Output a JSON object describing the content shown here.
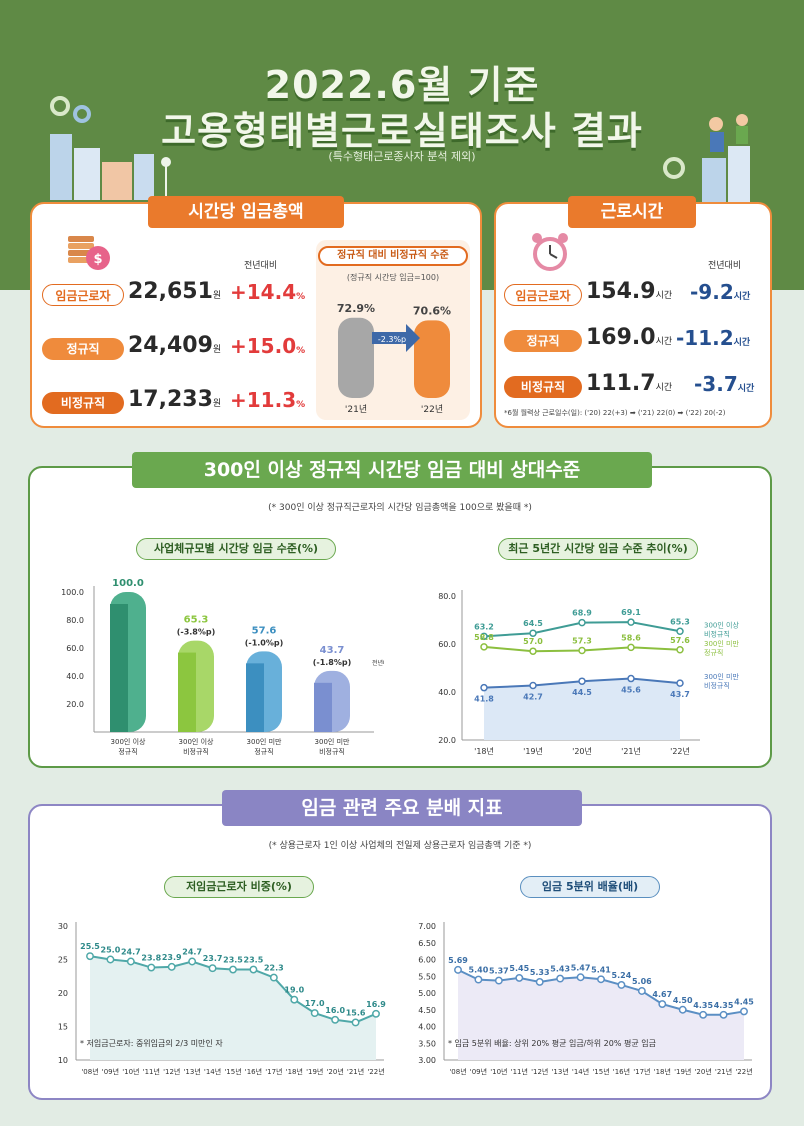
{
  "header": {
    "title_line1": "2022.6월 기준",
    "title_line2": "고용형태별근로실태조사 결과",
    "subtitle": "(특수형태근로종사자 분석 제외)"
  },
  "wage_panel": {
    "ribbon": "시간당 임금총액",
    "yoy_label": "전년대비",
    "rows": [
      {
        "label": "임금근로자",
        "value": "22,651",
        "unit": "원",
        "change": "+14.4",
        "change_unit": "%"
      },
      {
        "label": "정규직",
        "value": "24,409",
        "unit": "원",
        "change": "+15.0",
        "change_unit": "%"
      },
      {
        "label": "비정규직",
        "value": "17,233",
        "unit": "원",
        "change": "+11.3",
        "change_unit": "%"
      }
    ],
    "comparison": {
      "title": "정규직 대비 비정규직 수준",
      "note": "(정규직 시간당 임금=100)",
      "diff": "-2.3%p",
      "unit": "%"
    }
  },
  "hours_panel": {
    "ribbon": "근로시간",
    "yoy_label": "전년대비",
    "rows": [
      {
        "label": "임금근로자",
        "value": "154.9",
        "unit": "시간",
        "change": "-9.2",
        "change_unit": "시간"
      },
      {
        "label": "정규직",
        "value": "169.0",
        "unit": "시간",
        "change": "-11.2",
        "change_unit": "시간"
      },
      {
        "label": "비정규직",
        "value": "111.7",
        "unit": "시간",
        "change": "-3.7",
        "change_unit": "시간"
      }
    ],
    "footnote": "*6월 월력상 근로일수(일): ('20) 22(+3) ➡ ('21) 22(0) ➡ ('22) 20(-2)"
  },
  "section2": {
    "ribbon": "300인 이상 정규직 시간당 임금 대비 상대수준",
    "note": "(* 300인 이상 정규직근로자의 시간당 임금총액을 100으로 봤을때 *)",
    "bar_title": "사업체규모별 시간당 임금 수준(%)",
    "line_title": "최근 5년간 시간당 임금 수준 추이(%)",
    "bar_yoy_label": "전년대비"
  },
  "section3": {
    "ribbon": "임금 관련 주요 분배 지표",
    "note": "(* 상용근로자 1인 이상 사업체의 전일제 상용근로자 임금총액 기준 *)",
    "low_title": "저임금근로자 비중(%)",
    "ratio_title": "임금 5분위 배율(배)",
    "low_note": "* 저임금근로자: 중위임금의 2/3 미만인 자",
    "ratio_note": "* 임금 5분위 배율: 상위 20% 평균 임금/하위 20% 평균 임금"
  },
  "colors": {
    "orange": "#ea7a2c",
    "green": "#6aa84f",
    "purple": "#8a85c4",
    "red": "#e23b3b",
    "navy": "#254f8f"
  },
  "chart_data": [
    {
      "type": "bar",
      "id": "ratio",
      "categories": [
        "'21년",
        "'22년"
      ],
      "values": [
        72.9,
        70.6
      ],
      "value_labels": [
        "72.9",
        "70.6"
      ]
    },
    {
      "type": "bar",
      "id": "size",
      "categories": [
        [
          "300인 이상",
          "정규직"
        ],
        [
          "300인 이상",
          "비정규직"
        ],
        [
          "300인 미만",
          "정규직"
        ],
        [
          "300인 미만",
          "비정규직"
        ]
      ],
      "values": [
        100.0,
        65.3,
        57.6,
        43.7
      ],
      "value_labels": [
        "100.0",
        "65.3",
        "57.6",
        "43.7"
      ],
      "changes": [
        "",
        "(-3.8%p)",
        "(-1.0%p)",
        "(-1.8%p)"
      ],
      "yticks": [
        "100.0",
        "80.0",
        "60.0",
        "40.0",
        "20.0"
      ],
      "ylim": [
        0,
        100
      ]
    },
    {
      "type": "line",
      "id": "trend",
      "x": [
        "'18년",
        "'19년",
        "'20년",
        "'21년",
        "'22년"
      ],
      "yticks": [
        "80.0",
        "60.0",
        "40.0",
        "20.0"
      ],
      "ylim": [
        20,
        80
      ],
      "series": [
        {
          "name": [
            "300인 이상",
            "비정규직"
          ],
          "values": [
            63.2,
            64.5,
            68.9,
            69.1,
            65.3
          ],
          "labels": [
            "63.2",
            "64.5",
            "68.9",
            "69.1",
            "65.3"
          ],
          "color": "#3f9c95"
        },
        {
          "name": [
            "300인 미만",
            "정규직"
          ],
          "values": [
            58.8,
            57.0,
            57.3,
            58.6,
            57.6
          ],
          "labels": [
            "58.8",
            "57.0",
            "57.3",
            "58.6",
            "57.6"
          ],
          "color": "#8cbf3f"
        },
        {
          "name": [
            "300인 미만",
            "비정규직"
          ],
          "values": [
            41.8,
            42.7,
            44.5,
            45.6,
            43.7
          ],
          "labels": [
            "41.8",
            "42.7",
            "44.5",
            "45.6",
            "43.7"
          ],
          "color": "#4a78b8"
        }
      ]
    },
    {
      "type": "line",
      "id": "lowwage",
      "x": [
        "'08년",
        "'09년",
        "'10년",
        "'11년",
        "'12년",
        "'13년",
        "'14년",
        "'15년",
        "'16년",
        "'17년",
        "'18년",
        "'19년",
        "'20년",
        "'21년",
        "'22년"
      ],
      "values": [
        25.5,
        25.0,
        24.7,
        23.8,
        23.9,
        24.7,
        23.7,
        23.5,
        23.5,
        22.3,
        19.0,
        17.0,
        16.0,
        15.6,
        16.9
      ],
      "labels": [
        "25.5",
        "25.0",
        "24.7",
        "23.8",
        "23.9",
        "24.7",
        "23.7",
        "23.5",
        "23.5",
        "22.3",
        "19.0",
        "17.0",
        "16.0",
        "15.6",
        "16.9"
      ],
      "yticks": [
        "30",
        "25",
        "20",
        "15",
        "10"
      ],
      "ylim": [
        10,
        30
      ]
    },
    {
      "type": "line",
      "id": "quintile",
      "x": [
        "'08년",
        "'09년",
        "'10년",
        "'11년",
        "'12년",
        "'13년",
        "'14년",
        "'15년",
        "'16년",
        "'17년",
        "'18년",
        "'19년",
        "'20년",
        "'21년",
        "'22년"
      ],
      "values": [
        5.69,
        5.4,
        5.37,
        5.45,
        5.33,
        5.43,
        5.47,
        5.41,
        5.24,
        5.06,
        4.67,
        4.5,
        4.35,
        4.35,
        4.45
      ],
      "labels": [
        "5.69",
        "5.40",
        "5.37",
        "5.45",
        "5.33",
        "5.43",
        "5.47",
        "5.41",
        "5.24",
        "5.06",
        "4.67",
        "4.50",
        "4.35",
        "4.35",
        "4.45"
      ],
      "yticks": [
        "7.00",
        "6.50",
        "6.00",
        "5.50",
        "5.00",
        "4.50",
        "4.00",
        "3.50",
        "3.00"
      ],
      "ylim": [
        3.0,
        7.0
      ]
    }
  ]
}
